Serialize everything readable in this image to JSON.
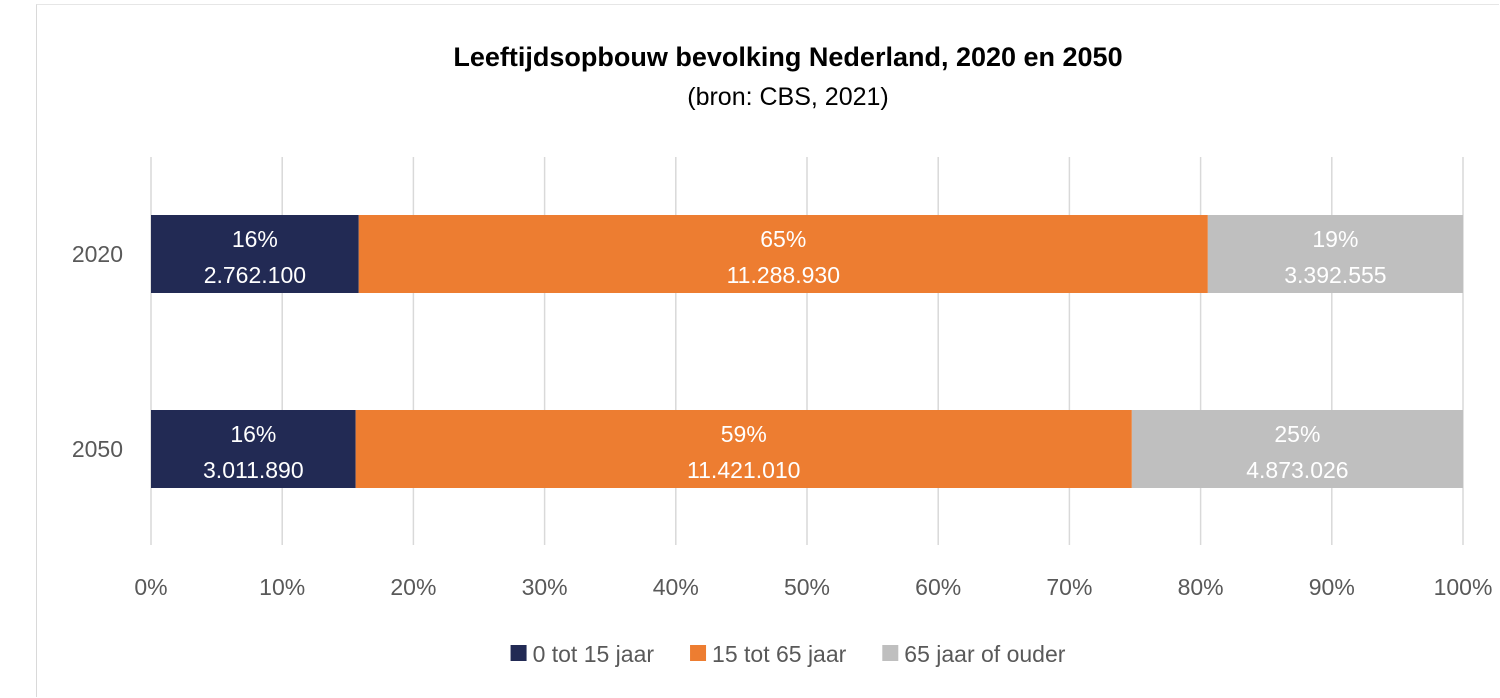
{
  "chart_data": {
    "type": "bar",
    "orientation": "horizontal",
    "stacked": "percent",
    "title": "Leeftijdsopbouw bevolking Nederland, 2020 en 2050",
    "subtitle": "(bron: CBS, 2021)",
    "categories": [
      "2020",
      "2050"
    ],
    "series": [
      {
        "name": "0 tot 15 jaar",
        "color": "#222a54",
        "values": [
          2762100,
          3011890
        ],
        "labels": [
          [
            "16%",
            "2.762.100"
          ],
          [
            "16%",
            "3.011.890"
          ]
        ]
      },
      {
        "name": "15 tot 65 jaar",
        "color": "#ed7d31",
        "values": [
          11288930,
          11421010
        ],
        "labels": [
          [
            "65%",
            "11.288.930"
          ],
          [
            "59%",
            "11.421.010"
          ]
        ]
      },
      {
        "name": "65 jaar of ouder",
        "color": "#bfbfbf",
        "values": [
          3392555,
          4873026
        ],
        "labels": [
          [
            "19%",
            "3.392.555"
          ],
          [
            "25%",
            "4.873.026"
          ]
        ]
      }
    ],
    "x_ticks": [
      "0%",
      "10%",
      "20%",
      "30%",
      "40%",
      "50%",
      "60%",
      "70%",
      "80%",
      "90%",
      "100%"
    ],
    "xlim": [
      0,
      100
    ],
    "grid": true,
    "legend_position": "bottom"
  }
}
